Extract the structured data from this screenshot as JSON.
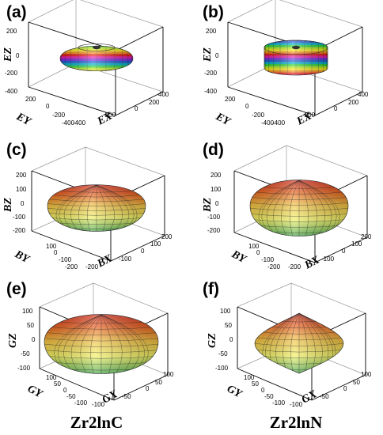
{
  "compounds": [
    "Zr2lnC",
    "Zr2lnN"
  ],
  "colors": {
    "band_cycle": [
      "#7a2be0",
      "#1f5bd6",
      "#00b3c8",
      "#2bd13a",
      "#b8e81a",
      "#f7e81a",
      "#f58a18",
      "#e81a1a",
      "#e81aa8"
    ],
    "heat_low": "#f4f07a",
    "heat_mid": "#f0a030",
    "heat_high": "#d21e10"
  },
  "panels": [
    {
      "letter": "(a)",
      "property": "E",
      "xlabel": "EX",
      "ylabel": "EY",
      "zlabel": "EZ",
      "zticks": [
        "200",
        "0",
        "-200",
        "-400"
      ],
      "yticks": [
        "200",
        "0",
        "-200",
        "-400"
      ],
      "xticks": [
        "-400",
        "-200",
        "0",
        "200",
        "400"
      ],
      "shape": "banded-ellipsoid"
    },
    {
      "letter": "(b)",
      "property": "E",
      "xlabel": "EX",
      "ylabel": "EY",
      "zlabel": "EZ",
      "zticks": [
        "200",
        "0",
        "-200",
        "-400"
      ],
      "yticks": [
        "200",
        "0",
        "-200",
        "-400"
      ],
      "xticks": [
        "-400",
        "-200",
        "0",
        "200",
        "400"
      ],
      "shape": "banded-cylinder"
    },
    {
      "letter": "(c)",
      "property": "B",
      "xlabel": "BX",
      "ylabel": "BY",
      "zlabel": "BZ",
      "zticks": [
        "200",
        "100",
        "0",
        "-100",
        "-200"
      ],
      "yticks": [
        "100",
        "0",
        "-100",
        "-200"
      ],
      "xticks": [
        "-200",
        "-100",
        "0",
        "100",
        "200"
      ],
      "shape": "heat-ellipsoid"
    },
    {
      "letter": "(d)",
      "property": "B",
      "xlabel": "BX",
      "ylabel": "BY",
      "zlabel": "BZ",
      "zticks": [
        "200",
        "100",
        "0",
        "-100",
        "-200"
      ],
      "yticks": [
        "100",
        "0",
        "-100",
        "-200"
      ],
      "xticks": [
        "-200",
        "-100",
        "0",
        "100",
        "200"
      ],
      "shape": "heat-ellipsoid-tall"
    },
    {
      "letter": "(e)",
      "property": "G",
      "xlabel": "GX",
      "ylabel": "GY",
      "zlabel": "GZ",
      "zticks": [
        "100",
        "50",
        "0",
        "-50",
        "-100"
      ],
      "yticks": [
        "100",
        "50",
        "0",
        "-50",
        "-100"
      ],
      "xticks": [
        "-100",
        "-50",
        "0",
        "50",
        "100"
      ],
      "shape": "heat-ellipsoid-wide"
    },
    {
      "letter": "(f)",
      "property": "G",
      "xlabel": "GX",
      "ylabel": "GY",
      "zlabel": "GZ",
      "zticks": [
        "100",
        "50",
        "0",
        "-50",
        "-100"
      ],
      "yticks": [
        "100",
        "50",
        "0",
        "-50",
        "-100"
      ],
      "xticks": [
        "-100",
        "-50",
        "0",
        "50",
        "100"
      ],
      "shape": "heat-double-cone"
    }
  ]
}
